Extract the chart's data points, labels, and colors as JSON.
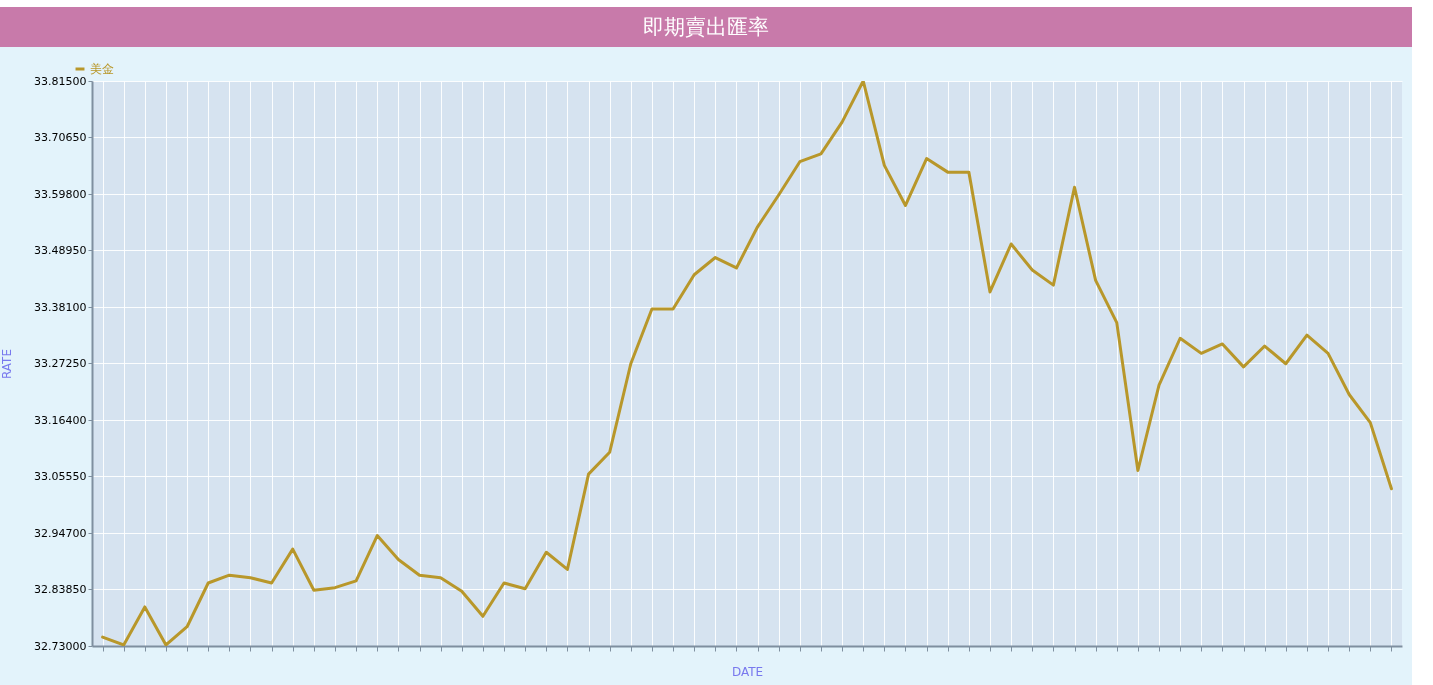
{
  "chart_data": {
    "type": "line",
    "title": "即期賣出匯率",
    "xlabel": "DATE",
    "ylabel": "RATE",
    "categories": [
      null,
      null,
      null,
      null,
      null,
      null,
      null,
      null,
      null,
      null,
      null,
      null,
      null,
      null,
      null,
      null,
      null,
      null,
      null,
      null,
      null,
      null,
      null,
      null,
      null,
      null,
      null,
      null,
      null,
      null,
      null,
      null,
      null,
      null,
      null,
      null,
      null,
      null,
      null,
      null,
      null,
      null,
      null,
      null,
      null,
      null,
      null,
      null,
      null,
      null,
      null,
      null,
      null,
      null,
      null,
      null,
      null,
      null,
      null,
      null,
      null,
      null
    ],
    "series": [
      {
        "name": "美金",
        "color": "#b8972a",
        "values": [
          32.747,
          32.732,
          32.805,
          32.732,
          32.767,
          32.851,
          32.866,
          32.861,
          32.851,
          32.916,
          32.837,
          32.842,
          32.855,
          32.942,
          32.896,
          32.866,
          32.861,
          32.835,
          32.787,
          32.851,
          32.84,
          32.91,
          32.877,
          33.06,
          33.102,
          33.272,
          33.377,
          33.377,
          33.443,
          33.476,
          33.456,
          33.535,
          33.596,
          33.66,
          33.675,
          33.736,
          33.815,
          33.653,
          33.576,
          33.666,
          33.64,
          33.64,
          33.41,
          33.502,
          33.452,
          33.423,
          33.611,
          33.432,
          33.351,
          33.067,
          33.231,
          33.321,
          33.292,
          33.31,
          33.266,
          33.306,
          33.272,
          33.327,
          33.292,
          33.213,
          33.159,
          33.032
        ]
      }
    ],
    "ylim": [
      32.73,
      33.815
    ],
    "yticks": [
      {
        "value": 32.73,
        "label": "32.73000"
      },
      {
        "value": 32.8385,
        "label": "32.83850"
      },
      {
        "value": 32.947,
        "label": "32.94700"
      },
      {
        "value": 33.0555,
        "label": "33.05550"
      },
      {
        "value": 33.164,
        "label": "33.16400"
      },
      {
        "value": 33.2725,
        "label": "33.27250"
      },
      {
        "value": 33.381,
        "label": "33.38100"
      },
      {
        "value": 33.4895,
        "label": "33.48950"
      },
      {
        "value": 33.598,
        "label": "33.59800"
      },
      {
        "value": 33.7065,
        "label": "33.70650"
      },
      {
        "value": 33.815,
        "label": "33.81500"
      }
    ],
    "grid": true,
    "legend": "top left"
  }
}
